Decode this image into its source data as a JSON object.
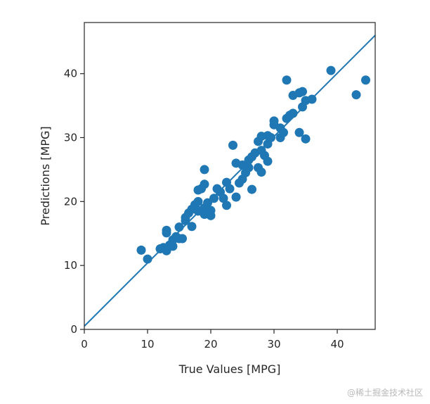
{
  "chart_data": {
    "type": "scatter",
    "title": "",
    "xlabel": "True Values [MPG]",
    "ylabel": "Predictions [MPG]",
    "xlim": [
      0,
      46
    ],
    "ylim": [
      0,
      48
    ],
    "xticks": [
      0,
      10,
      20,
      30,
      40
    ],
    "yticks": [
      0,
      10,
      20,
      30,
      40
    ],
    "grid": false,
    "legend": "none",
    "colors": {
      "points": "#1f77b4",
      "line": "#1f77b4",
      "axes": "#262626"
    },
    "series": [
      {
        "kind": "points",
        "values": [
          [
            9.0,
            12.4
          ],
          [
            10.0,
            11.0
          ],
          [
            12.0,
            12.6
          ],
          [
            12.5,
            12.8
          ],
          [
            13.0,
            12.3
          ],
          [
            13.0,
            15.1
          ],
          [
            13.0,
            15.5
          ],
          [
            13.5,
            13.2
          ],
          [
            14.0,
            14.0
          ],
          [
            14.0,
            13.0
          ],
          [
            14.5,
            14.5
          ],
          [
            15.0,
            16.0
          ],
          [
            15.0,
            14.2
          ],
          [
            15.5,
            14.2
          ],
          [
            16.0,
            17.0
          ],
          [
            16.0,
            17.5
          ],
          [
            16.5,
            18.2
          ],
          [
            17.0,
            18.8
          ],
          [
            17.0,
            16.1
          ],
          [
            17.5,
            19.0
          ],
          [
            17.5,
            19.5
          ],
          [
            18.0,
            18.5
          ],
          [
            18.0,
            20.0
          ],
          [
            18.0,
            21.8
          ],
          [
            18.5,
            18.6
          ],
          [
            18.5,
            22.0
          ],
          [
            19.0,
            19.0
          ],
          [
            19.0,
            25.0
          ],
          [
            19.0,
            22.7
          ],
          [
            19.0,
            18.0
          ],
          [
            19.5,
            19.8
          ],
          [
            20.0,
            18.6
          ],
          [
            20.0,
            17.8
          ],
          [
            20.5,
            20.5
          ],
          [
            21.0,
            22.0
          ],
          [
            21.5,
            21.5
          ],
          [
            22.0,
            20.5
          ],
          [
            22.5,
            23.0
          ],
          [
            22.5,
            19.4
          ],
          [
            23.0,
            22.0
          ],
          [
            23.5,
            28.8
          ],
          [
            24.0,
            26.0
          ],
          [
            24.0,
            20.7
          ],
          [
            24.5,
            22.9
          ],
          [
            25.0,
            23.5
          ],
          [
            25.0,
            25.7
          ],
          [
            25.5,
            24.5
          ],
          [
            26.0,
            25.3
          ],
          [
            26.0,
            26.5
          ],
          [
            26.5,
            27.0
          ],
          [
            26.5,
            21.9
          ],
          [
            27.0,
            27.6
          ],
          [
            27.5,
            25.3
          ],
          [
            27.5,
            29.4
          ],
          [
            28.0,
            30.2
          ],
          [
            28.0,
            24.6
          ],
          [
            28.0,
            28.0
          ],
          [
            28.5,
            27.2
          ],
          [
            29.0,
            29.0
          ],
          [
            29.0,
            30.3
          ],
          [
            29.0,
            26.3
          ],
          [
            29.5,
            30.0
          ],
          [
            30.0,
            32.0
          ],
          [
            30.0,
            32.6
          ],
          [
            31.0,
            31.5
          ],
          [
            31.0,
            30.0
          ],
          [
            31.5,
            30.8
          ],
          [
            32.0,
            33.0
          ],
          [
            32.0,
            39.0
          ],
          [
            32.5,
            33.5
          ],
          [
            33.0,
            36.6
          ],
          [
            33.0,
            33.8
          ],
          [
            34.0,
            37.0
          ],
          [
            34.0,
            30.8
          ],
          [
            34.5,
            37.2
          ],
          [
            34.5,
            34.8
          ],
          [
            35.0,
            35.8
          ],
          [
            35.0,
            29.8
          ],
          [
            36.0,
            36.0
          ],
          [
            39.0,
            40.5
          ],
          [
            43.0,
            36.7
          ],
          [
            44.5,
            39.0
          ]
        ]
      },
      {
        "kind": "line",
        "values": [
          [
            0,
            0.5
          ],
          [
            46,
            46
          ]
        ]
      }
    ]
  },
  "watermark": "@稀土掘金技术社区"
}
